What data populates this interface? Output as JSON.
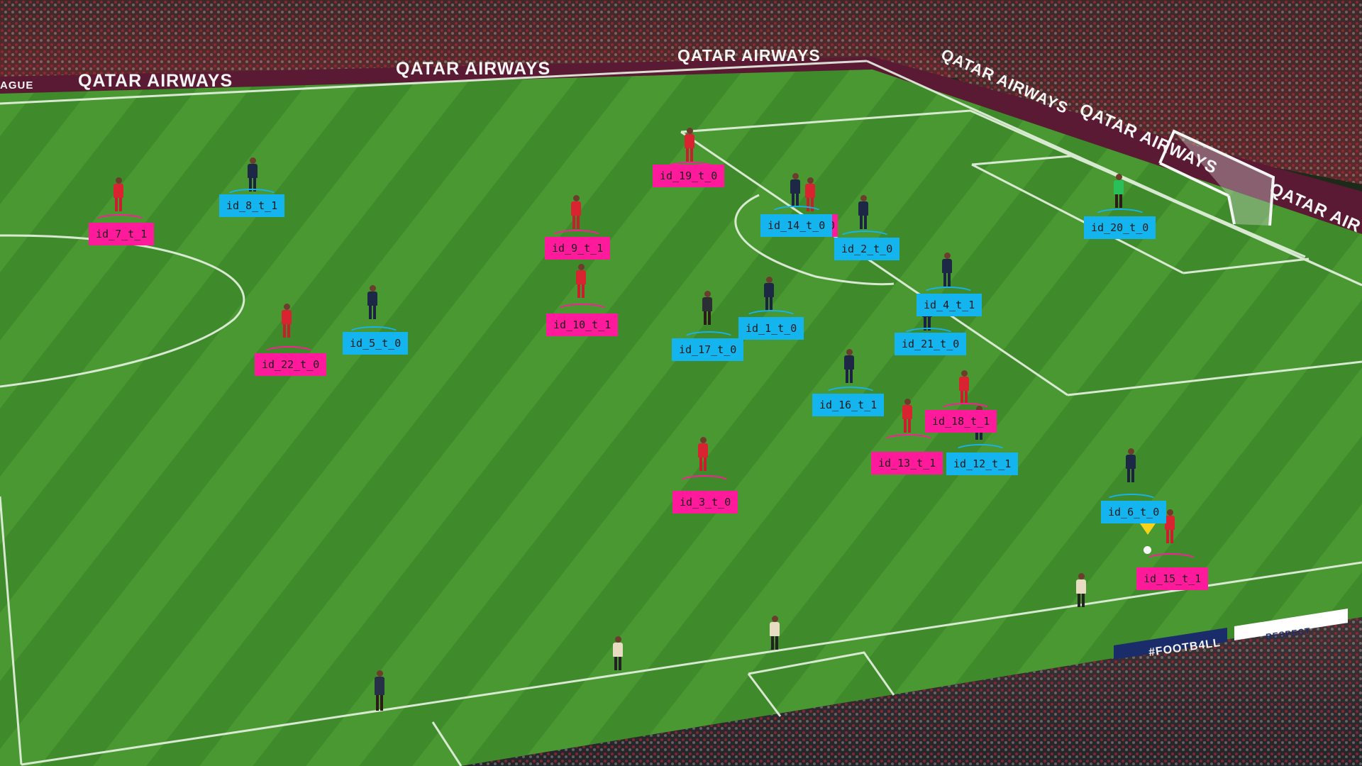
{
  "broadcast": {
    "boards": {
      "b1": "QATAR AIRWAYS",
      "b2": "QATAR AIRWAYS",
      "b3": "QATAR AIRWAYS",
      "b4": "QATAR AIRWAYS",
      "b5": "QATAR AIRWAYS",
      "b6": "QATAR AIR",
      "league_fragment": "AGUE",
      "footb": "#FOOTB4LL",
      "respect": "RESPECT"
    }
  },
  "tracks": {
    "id_7_t_1": "id_7_t_1",
    "id_8_t_1": "id_8_t_1",
    "id_19_t_0": "id_19_t_0",
    "id_9_t_1": "id_9_t_1",
    "id_14_t_0": "id_14_t_0",
    "id_14_occluded": "0",
    "id_2_t_0": "id_2_t_0",
    "id_20_t_0": "id_20_t_0",
    "id_4_t_1": "id_4_t_1",
    "id_22_t_0": "id_22_t_0",
    "id_5_t_0": "id_5_t_0",
    "id_10_t_1": "id_10_t_1",
    "id_17_t_0": "id_17_t_0",
    "id_1_t_0": "id_1_t_0",
    "id_21_t_0": "id_21_t_0",
    "id_16_t_1": "id_16_t_1",
    "id_18_t_1": "id_18_t_1",
    "id_13_t_1": "id_13_t_1",
    "id_12_t_1": "id_12_t_1",
    "id_3_t_0": "id_3_t_0",
    "id_6_t_0": "id_6_t_0",
    "id_15_t_1": "id_15_t_1"
  },
  "colors": {
    "team_1_tag": "#ff1a9b",
    "team_0_tag": "#14b4ef",
    "ball_marker": "#f7d21a"
  }
}
